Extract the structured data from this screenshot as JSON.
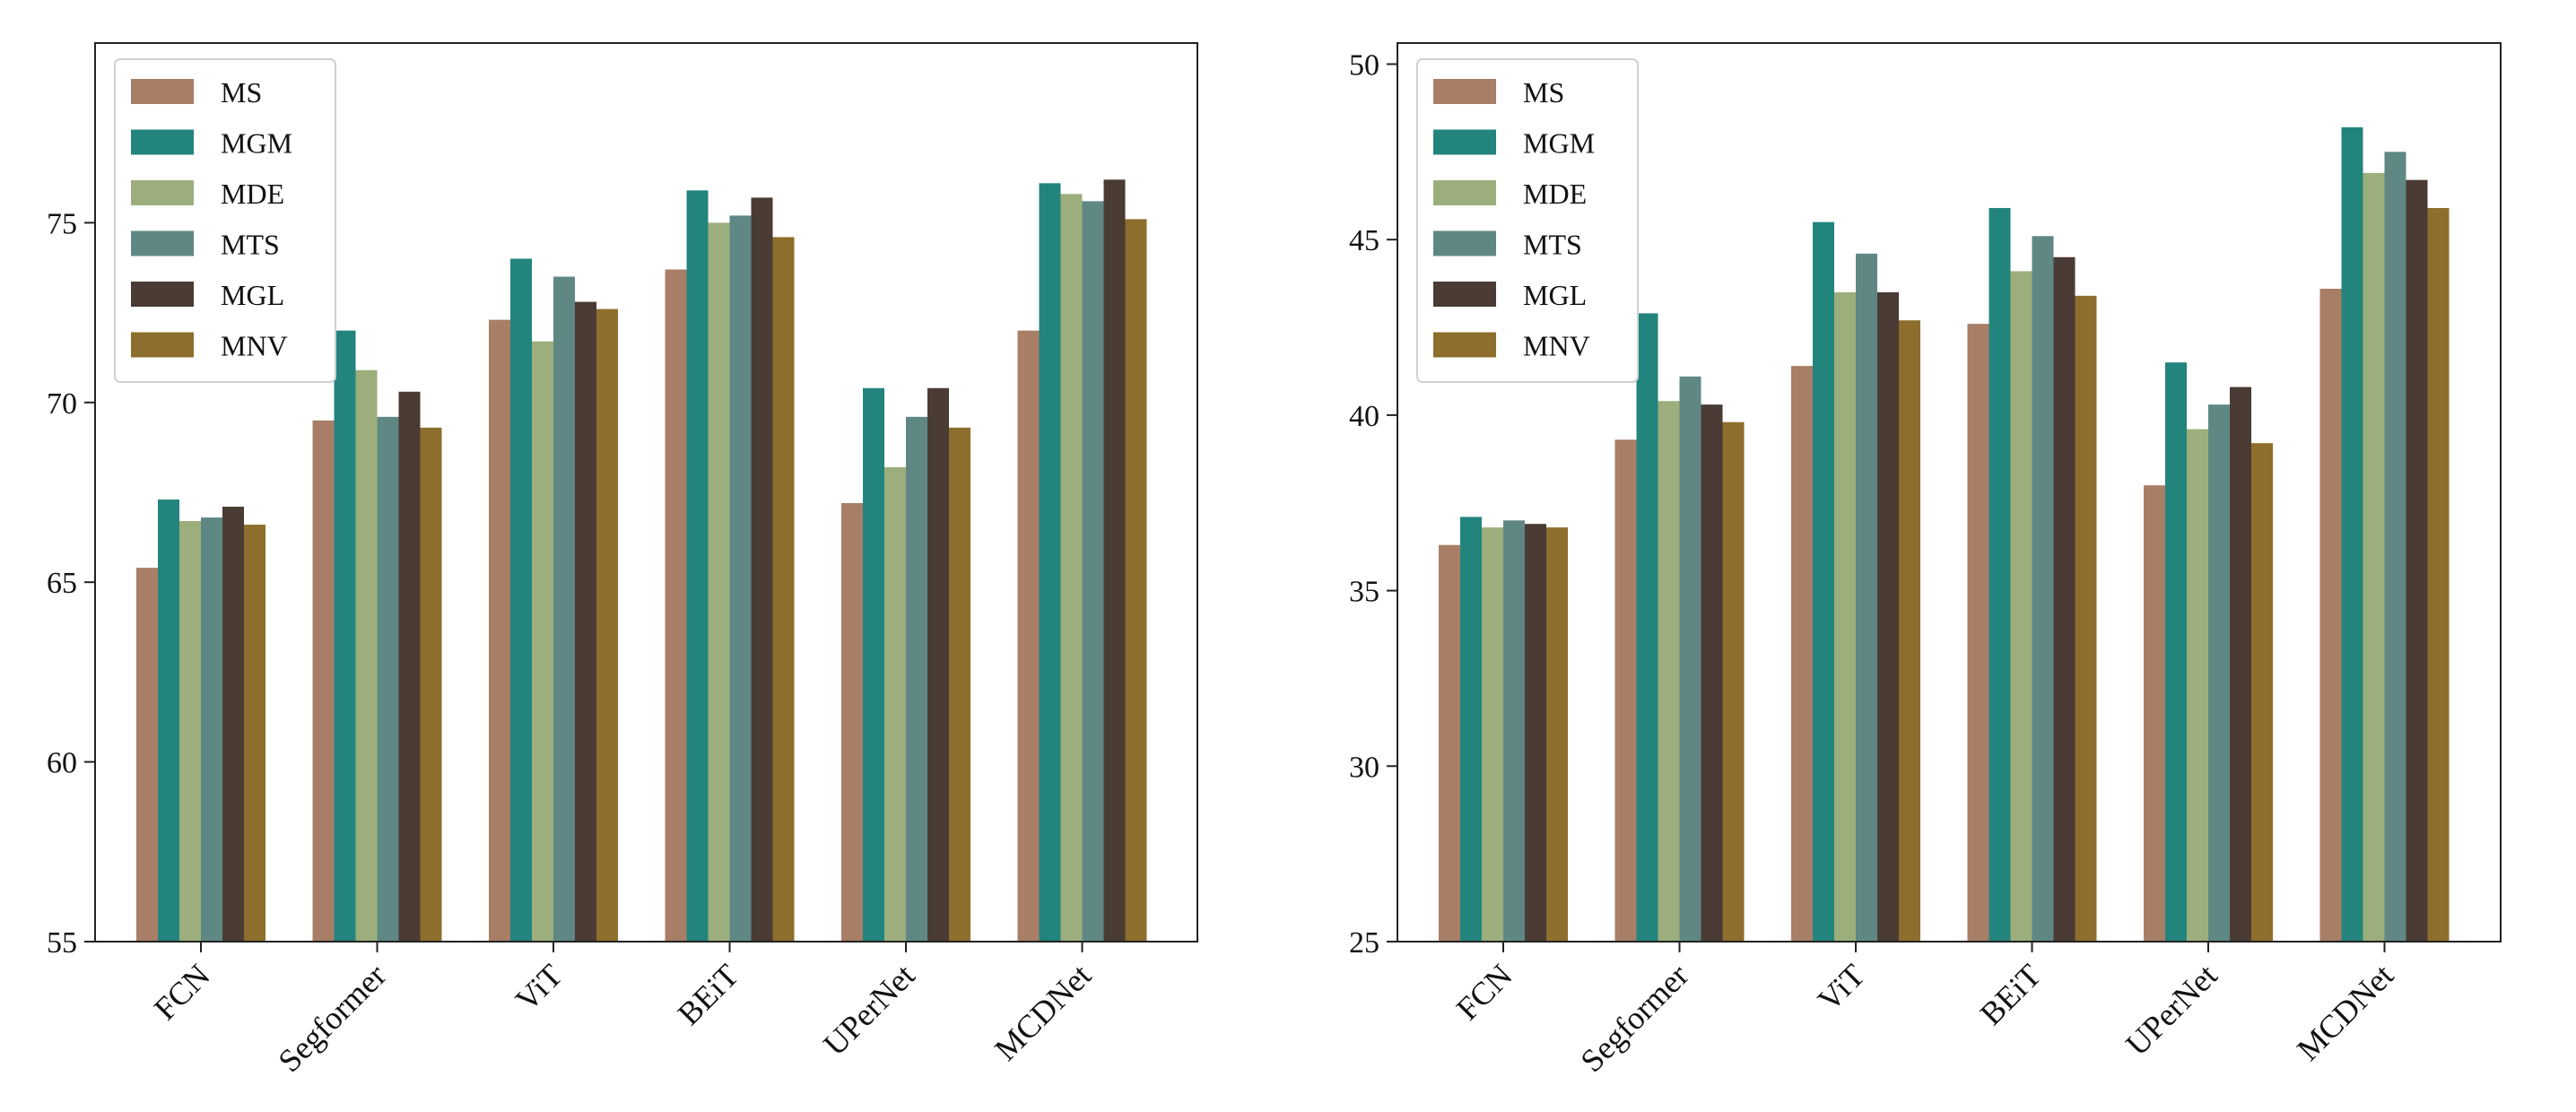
{
  "chart_data": [
    {
      "type": "bar",
      "categories": [
        "FCN",
        "Segformer",
        "ViT",
        "BEiT",
        "UPerNet",
        "MCDNet"
      ],
      "ylim": [
        55,
        80
      ],
      "yticks": [
        "55",
        "60",
        "65",
        "70",
        "75"
      ],
      "legend_position": "top-left",
      "grid": false,
      "series": [
        {
          "name": "MS",
          "color": "#a87e66",
          "values": [
            65.4,
            69.5,
            72.3,
            73.7,
            67.2,
            72.0
          ]
        },
        {
          "name": "MGM",
          "color": "#23847e",
          "values": [
            67.3,
            72.0,
            74.0,
            75.9,
            70.4,
            76.1
          ]
        },
        {
          "name": "MDE",
          "color": "#9cae7c",
          "values": [
            66.7,
            70.9,
            71.7,
            75.0,
            68.2,
            75.8
          ]
        },
        {
          "name": "MTS",
          "color": "#5f8884",
          "values": [
            66.8,
            69.6,
            73.5,
            75.2,
            69.6,
            75.6
          ]
        },
        {
          "name": "MGL",
          "color": "#4a3b34",
          "values": [
            67.1,
            70.3,
            72.8,
            75.7,
            70.4,
            76.2
          ]
        },
        {
          "name": "MNV",
          "color": "#8e6e2c",
          "values": [
            66.6,
            69.3,
            72.6,
            74.6,
            69.3,
            75.1
          ]
        }
      ]
    },
    {
      "type": "bar",
      "categories": [
        "FCN",
        "Segformer",
        "ViT",
        "BEiT",
        "UPerNet",
        "MCDNet"
      ],
      "ylim": [
        25,
        50.6
      ],
      "yticks": [
        "25",
        "30",
        "35",
        "40",
        "45",
        "50"
      ],
      "legend_position": "top-left",
      "grid": false,
      "series": [
        {
          "name": "MS",
          "color": "#a87e66",
          "values": [
            36.3,
            39.3,
            41.4,
            42.6,
            38.0,
            43.6
          ]
        },
        {
          "name": "MGM",
          "color": "#23847e",
          "values": [
            37.1,
            42.9,
            45.5,
            45.9,
            41.5,
            48.2
          ]
        },
        {
          "name": "MDE",
          "color": "#9cae7c",
          "values": [
            36.8,
            40.4,
            43.5,
            44.1,
            39.6,
            46.9
          ]
        },
        {
          "name": "MTS",
          "color": "#5f8884",
          "values": [
            37.0,
            41.1,
            44.6,
            45.1,
            40.3,
            47.5
          ]
        },
        {
          "name": "MGL",
          "color": "#4a3b34",
          "values": [
            36.9,
            40.3,
            43.5,
            44.5,
            40.8,
            46.7
          ]
        },
        {
          "name": "MNV",
          "color": "#8e6e2c",
          "values": [
            36.8,
            39.8,
            42.7,
            43.4,
            39.2,
            45.9
          ]
        }
      ]
    }
  ]
}
